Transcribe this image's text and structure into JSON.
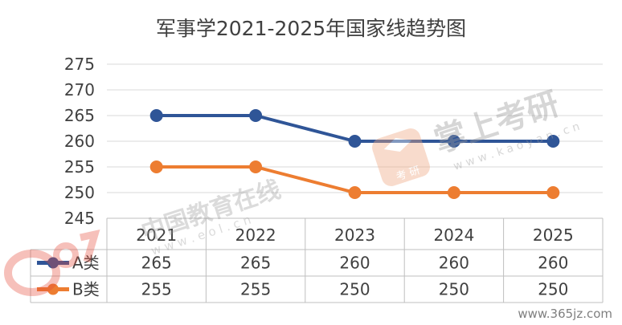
{
  "chart_data": {
    "type": "line",
    "title": "军事学2021-2025年国家线趋势图",
    "x": [
      "2021",
      "2022",
      "2023",
      "2024",
      "2025"
    ],
    "series": [
      {
        "name": "A类",
        "values": [
          265,
          265,
          260,
          260,
          260
        ],
        "color": "#2f5597"
      },
      {
        "name": "B类",
        "values": [
          255,
          255,
          250,
          250,
          250
        ],
        "color": "#ed7d31"
      }
    ],
    "ylim": [
      245,
      275
    ],
    "yticks": [
      245,
      250,
      255,
      260,
      265,
      270,
      275
    ],
    "grid": true,
    "legend": "data-table"
  },
  "watermarks": {
    "eol_cn": "中国教育在线",
    "eol_url": "w w w . e o l . c n",
    "koovan_cn": "掌上考研",
    "koovan_badge": "考 研",
    "koovan_url": "w w w . k a o y a n . c n",
    "site": "www.365jz.com"
  }
}
